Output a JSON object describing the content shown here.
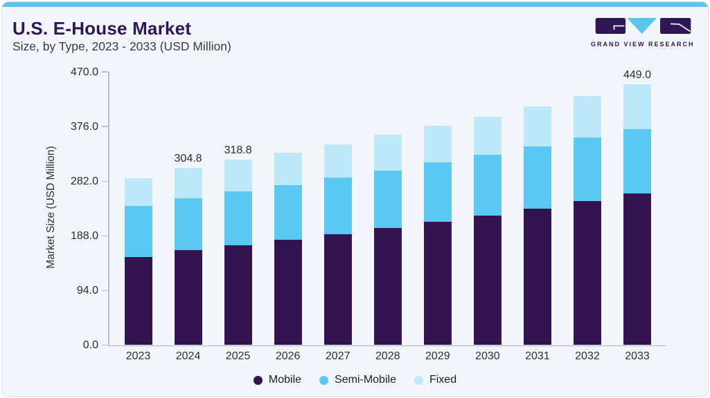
{
  "card": {
    "title": "U.S. E-House Market",
    "subtitle": "Size, by Type, 2023 - 2033 (USD Million)"
  },
  "logo": {
    "text": "GRAND VIEW RESEARCH",
    "purple": "#2F1656",
    "blue": "#5BC4EE"
  },
  "chart_data": {
    "type": "bar",
    "stacked": true,
    "title": "U.S. E-House Market Size, by Type, 2023 - 2033 (USD Million)",
    "categories": [
      "2023",
      "2024",
      "2025",
      "2026",
      "2027",
      "2028",
      "2029",
      "2030",
      "2031",
      "2032",
      "2033"
    ],
    "series": [
      {
        "name": "Mobile",
        "color": "#331450",
        "values": [
          152.0,
          163.0,
          171.9,
          181.0,
          190.8,
          201.2,
          211.9,
          223.3,
          235.2,
          247.8,
          260.5
        ]
      },
      {
        "name": "Semi-Mobile",
        "color": "#5BC8F4",
        "values": [
          87.5,
          89.9,
          92.1,
          94.8,
          97.0,
          99.5,
          102.2,
          103.8,
          106.6,
          109.4,
          111.6
        ]
      },
      {
        "name": "Fixed",
        "color": "#BCE8F8",
        "values": [
          48.0,
          51.9,
          54.8,
          55.2,
          57.7,
          61.5,
          63.9,
          66.4,
          69.0,
          71.5,
          76.9
        ]
      }
    ],
    "totals": [
      287.5,
      304.8,
      318.8,
      331.0,
      345.5,
      362.2,
      378.0,
      393.5,
      410.8,
      428.7,
      449.0
    ],
    "total_labels": [
      "",
      "304.8",
      "318.8",
      "",
      "",
      "",
      "",
      "",
      "",
      "",
      "449.0"
    ],
    "ylabel": "Market Size (USD Million)",
    "yticks": [
      0.0,
      94.0,
      188.0,
      282.0,
      376.0,
      470.0
    ],
    "ytick_labels": [
      "0.0",
      "94.0",
      "188.0",
      "282.0",
      "376.0",
      "470.0"
    ],
    "ylim": [
      0,
      470
    ],
    "grid": false,
    "legend_position": "bottom"
  }
}
